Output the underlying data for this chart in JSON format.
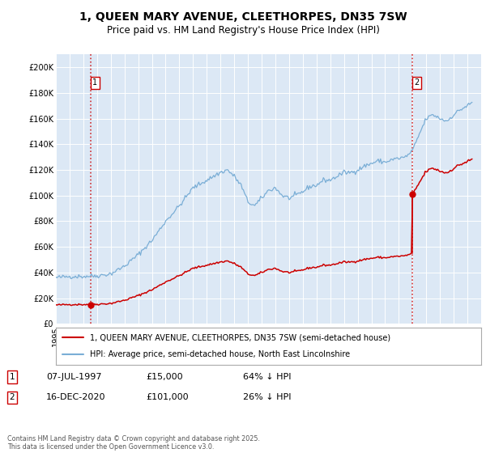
{
  "title": "1, QUEEN MARY AVENUE, CLEETHORPES, DN35 7SW",
  "subtitle": "Price paid vs. HM Land Registry's House Price Index (HPI)",
  "title_fontsize": 10,
  "subtitle_fontsize": 8.5,
  "background_color": "#dce8f5",
  "plot_bg_color": "#dce8f5",
  "hpi_color": "#7aaed6",
  "price_color": "#cc0000",
  "dashed_color": "#cc0000",
  "ylim": [
    0,
    210000
  ],
  "yticks": [
    0,
    20000,
    40000,
    60000,
    80000,
    100000,
    120000,
    140000,
    160000,
    180000,
    200000
  ],
  "sale1": {
    "date_num": 1997.52,
    "price": 15000,
    "label": "1"
  },
  "sale2": {
    "date_num": 2020.96,
    "price": 101000,
    "label": "2"
  },
  "legend_entries": [
    "1, QUEEN MARY AVENUE, CLEETHORPES, DN35 7SW (semi-detached house)",
    "HPI: Average price, semi-detached house, North East Lincolnshire"
  ],
  "footer": "Contains HM Land Registry data © Crown copyright and database right 2025.\nThis data is licensed under the Open Government Licence v3.0.",
  "xmin": 1995,
  "xmax": 2026
}
